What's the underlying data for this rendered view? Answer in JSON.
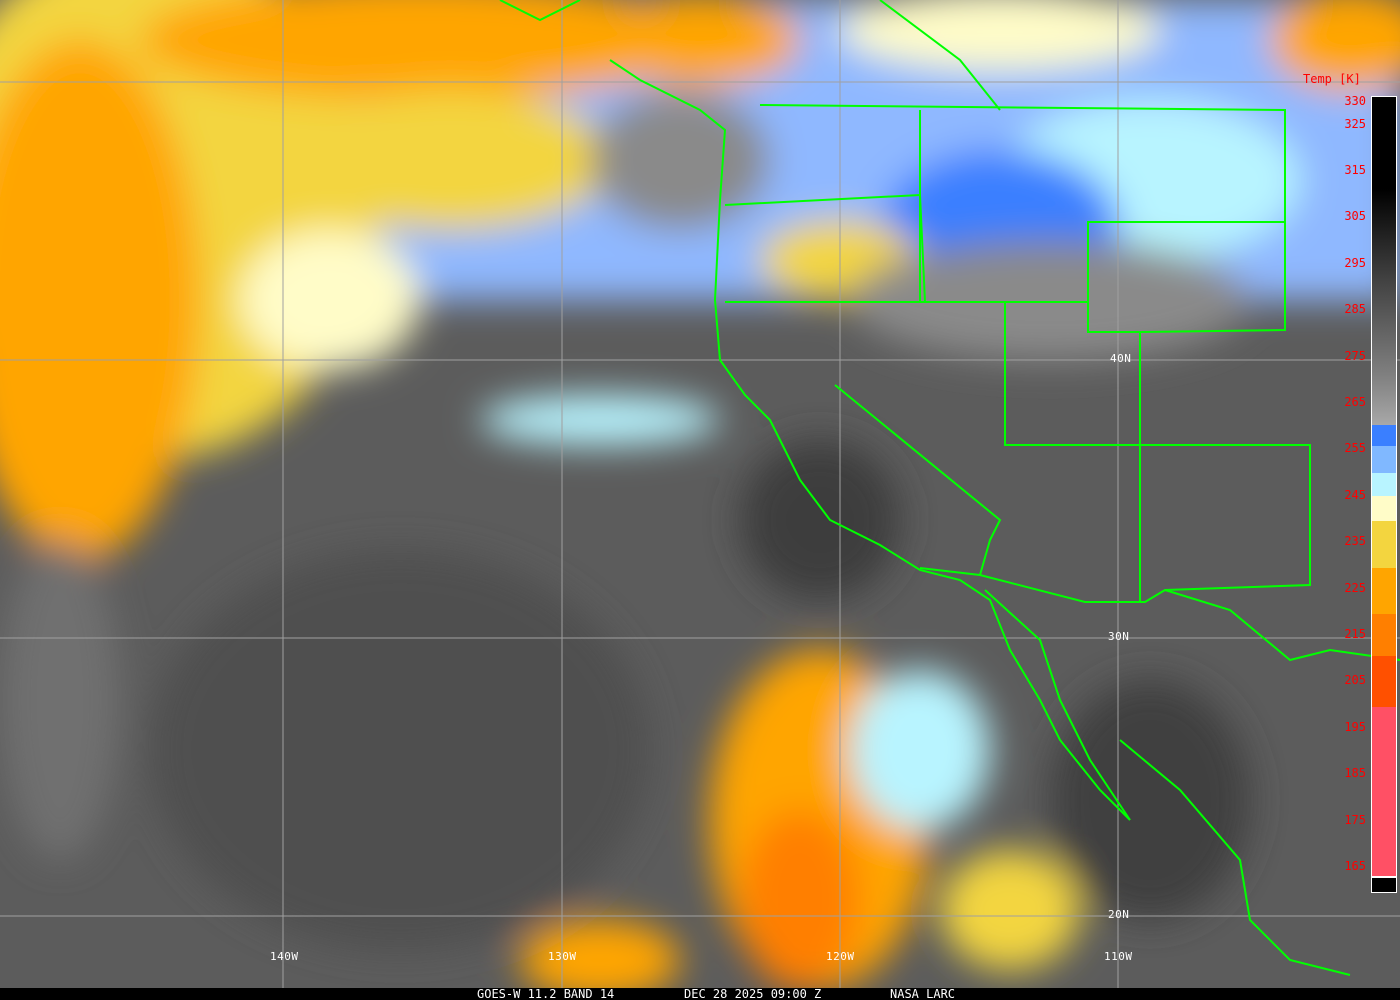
{
  "footer": {
    "product": "GOES-W 11.2 BAND 14",
    "datetime": "DEC 28 2025 09:00 Z",
    "source": "NASA LARC"
  },
  "colorbar": {
    "title": "Temp [K]",
    "ticks": [
      "330",
      "325",
      "315",
      "305",
      "295",
      "285",
      "275",
      "265",
      "255",
      "245",
      "235",
      "225",
      "215",
      "205",
      "195",
      "185",
      "175",
      "165"
    ],
    "colors": {
      "warm_top": "#000000",
      "gray": "#a0a0a0",
      "blue": "#3a7fff",
      "light_blue": "#80b8ff",
      "cyan": "#b8f4ff",
      "cream": "#fffcc8",
      "gold": "#f3d53f",
      "orange": "#ffa500",
      "dark_orange": "#ff7f00",
      "red_orange": "#ff5000",
      "pink": "#ff5065"
    }
  },
  "grid": {
    "lat_labels": [
      "40N",
      "30N",
      "20N"
    ],
    "lon_labels": [
      "140W",
      "130W",
      "120W",
      "110W"
    ]
  },
  "colors": {
    "boundaries": "#00ff00",
    "gridlines": "#a0a0a0"
  }
}
